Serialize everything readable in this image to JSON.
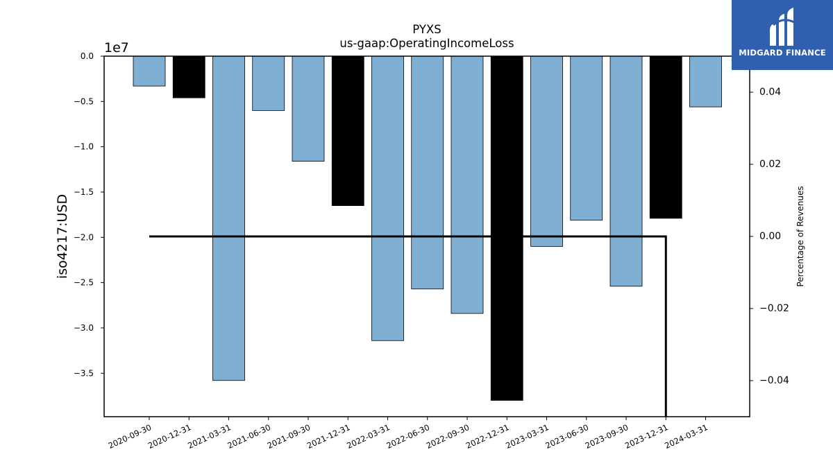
{
  "chart_data": {
    "type": "bar",
    "title": "PYXS",
    "subtitle": "us-gaap:OperatingIncomeLoss",
    "ylabel": "iso4217:USD",
    "y_offset_label": "1e7",
    "y2label": "Percentage of Revenues",
    "categories": [
      "2020-09-30",
      "2020-12-31",
      "2021-03-31",
      "2021-06-30",
      "2021-09-30",
      "2021-12-31",
      "2022-03-31",
      "2022-06-30",
      "2022-09-30",
      "2022-12-31",
      "2023-03-31",
      "2023-06-30",
      "2023-09-30",
      "2023-12-31",
      "2024-03-31"
    ],
    "values": [
      -3300000,
      -4600000,
      -35800000,
      -6000000,
      -11600000,
      -16500000,
      -31400000,
      -25700000,
      -28400000,
      -38000000,
      -21000000,
      -18100000,
      -25400000,
      -17900000,
      -5600000
    ],
    "bar_colors": [
      "#7fafd3",
      "#000000",
      "#7fafd3",
      "#7fafd3",
      "#7fafd3",
      "#000000",
      "#7fafd3",
      "#7fafd3",
      "#7fafd3",
      "#000000",
      "#7fafd3",
      "#7fafd3",
      "#7fafd3",
      "#000000",
      "#7fafd3"
    ],
    "ylim": [
      -39800000,
      0
    ],
    "y_ticks": [
      0,
      -5000000,
      -10000000,
      -15000000,
      -20000000,
      -25000000,
      -30000000,
      -35000000
    ],
    "y_tick_labels": [
      "0.0",
      "−0.5",
      "−1.0",
      "−1.5",
      "−2.0",
      "−2.5",
      "−3.0",
      "−3.5"
    ],
    "y2lim": [
      -0.05,
      0.05
    ],
    "y2_ticks": [
      0.04,
      0.02,
      0.0,
      -0.02,
      -0.04
    ],
    "y2_tick_labels": [
      "0.04",
      "0.02",
      "0.00",
      "−0.02",
      "−0.04"
    ],
    "line_series": {
      "x": [
        "2020-09-30",
        "2021-03-31",
        "2021-09-30",
        "2022-03-31",
        "2022-09-30",
        "2023-03-31",
        "2023-09-30",
        "2023-12-31"
      ],
      "values": [
        0,
        0,
        0,
        0,
        0,
        0,
        0,
        0
      ],
      "drop_to_min_after_last": true
    },
    "grid": false,
    "legend": "none"
  },
  "logo": {
    "name": "MIDGARD FINANCE",
    "color": "#2f5fae"
  }
}
